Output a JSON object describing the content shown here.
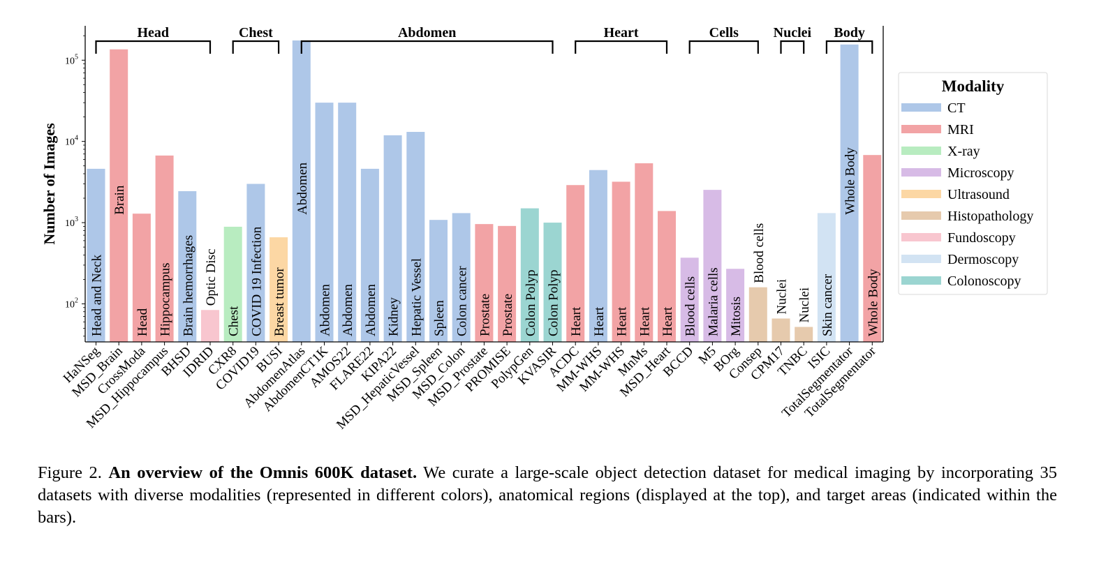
{
  "chart_data": {
    "type": "bar",
    "yscale": "log",
    "ylabel": "Number of Images",
    "xlabel": "",
    "ylim": [
      34,
      265000
    ],
    "yticks": [
      {
        "value": 100,
        "base": "10",
        "exp": "2"
      },
      {
        "value": 1000,
        "base": "10",
        "exp": "3"
      },
      {
        "value": 10000,
        "base": "10",
        "exp": "4"
      },
      {
        "value": 100000,
        "base": "10",
        "exp": "5"
      }
    ],
    "grid": false,
    "legend": {
      "title": "Modality",
      "placement": "right",
      "entries": [
        {
          "name": "CT",
          "color": "#aec7e8"
        },
        {
          "name": "MRI",
          "color": "#f2a3a5"
        },
        {
          "name": "X-ray",
          "color": "#b8ecc0"
        },
        {
          "name": "Microscopy",
          "color": "#d7bbe6"
        },
        {
          "name": "Ultrasound",
          "color": "#fcd7a4"
        },
        {
          "name": "Histopathology",
          "color": "#e6caad"
        },
        {
          "name": "Fundoscopy",
          "color": "#f8c6cf"
        },
        {
          "name": "Dermoscopy",
          "color": "#d2e3f3"
        },
        {
          "name": "Colonoscopy",
          "color": "#9bd5d1"
        }
      ]
    },
    "regions": [
      {
        "name": "Head",
        "from": 0,
        "to": 5
      },
      {
        "name": "Chest",
        "from": 6,
        "to": 8
      },
      {
        "name": "Abdomen",
        "from": 9,
        "to": 20
      },
      {
        "name": "Heart",
        "from": 21,
        "to": 25
      },
      {
        "name": "Cells",
        "from": 26,
        "to": 29
      },
      {
        "name": "Nuclei",
        "from": 30,
        "to": 31
      },
      {
        "name": "Body",
        "from": 32,
        "to": 34
      }
    ],
    "bars": [
      {
        "dataset": "HaNSeg",
        "modality": "CT",
        "target": "Head and Neck",
        "value": 4600
      },
      {
        "dataset": "MSD_Brain",
        "modality": "MRI",
        "target": "Brain",
        "value": 136000
      },
      {
        "dataset": "CrossModa",
        "modality": "MRI",
        "target": "Head",
        "value": 1290
      },
      {
        "dataset": "MSD_Hippocampus",
        "modality": "MRI",
        "target": "Hippocampus",
        "value": 6700
      },
      {
        "dataset": "BHSD",
        "modality": "CT",
        "target": "Brain hemorrhages",
        "value": 2440
      },
      {
        "dataset": "IDRID",
        "modality": "Fundoscopy",
        "target": "Optic Disc",
        "value": 84
      },
      {
        "dataset": "CXR8",
        "modality": "X-ray",
        "target": "Chest",
        "value": 890
      },
      {
        "dataset": "COVID19",
        "modality": "CT",
        "target": "COVID 19 Infection",
        "value": 3000
      },
      {
        "dataset": "BUSI",
        "modality": "Ultrasound",
        "target": "Breast tumor",
        "value": 660
      },
      {
        "dataset": "AbdomenAtlas",
        "modality": "CT",
        "target": "Abdomen",
        "value": 175000
      },
      {
        "dataset": "AbdomenCT1K",
        "modality": "CT",
        "target": "Abdomen",
        "value": 30000
      },
      {
        "dataset": "AMOS22",
        "modality": "CT",
        "target": "Abdomen",
        "value": 30000
      },
      {
        "dataset": "FLARE22",
        "modality": "CT",
        "target": "Abdomen",
        "value": 4600
      },
      {
        "dataset": "KIPA22",
        "modality": "CT",
        "target": "Kidney",
        "value": 11900
      },
      {
        "dataset": "MSD_HepaticVessel",
        "modality": "CT",
        "target": "Hepatic Vessel",
        "value": 13100
      },
      {
        "dataset": "MSD_Spleen",
        "modality": "CT",
        "target": "Spleen",
        "value": 1080
      },
      {
        "dataset": "MSD_Colon",
        "modality": "CT",
        "target": "Colon cancer",
        "value": 1310
      },
      {
        "dataset": "MSD_Prostate",
        "modality": "MRI",
        "target": "Prostate",
        "value": 960
      },
      {
        "dataset": "PROMISE",
        "modality": "MRI",
        "target": "Prostate",
        "value": 910
      },
      {
        "dataset": "PolypGen",
        "modality": "Colonoscopy",
        "target": "Colon Polyp",
        "value": 1500
      },
      {
        "dataset": "KVASIR",
        "modality": "Colonoscopy",
        "target": "Colon Polyp",
        "value": 1000
      },
      {
        "dataset": "ACDC",
        "modality": "MRI",
        "target": "Heart",
        "value": 2900
      },
      {
        "dataset": "MM-WHS",
        "modality": "CT",
        "target": "Heart",
        "value": 4440
      },
      {
        "dataset": "MM-WHS",
        "modality": "MRI",
        "target": "Heart",
        "value": 3190
      },
      {
        "dataset": "MnMs",
        "modality": "MRI",
        "target": "Heart",
        "value": 5380
      },
      {
        "dataset": "MSD_Heart",
        "modality": "MRI",
        "target": "Heart",
        "value": 1390
      },
      {
        "dataset": "BCCD",
        "modality": "Microscopy",
        "target": "Blood cells",
        "value": 370
      },
      {
        "dataset": "M5",
        "modality": "Microscopy",
        "target": "Malaria cells",
        "value": 2530
      },
      {
        "dataset": "BOrg",
        "modality": "Microscopy",
        "target": "Mitosis",
        "value": 270
      },
      {
        "dataset": "Consep",
        "modality": "Histopathology",
        "target": "Blood cells",
        "value": 160
      },
      {
        "dataset": "CPM17",
        "modality": "Histopathology",
        "target": "Nuclei",
        "value": 66
      },
      {
        "dataset": "TNBC",
        "modality": "Histopathology",
        "target": "Nuclei",
        "value": 52
      },
      {
        "dataset": "ISIC",
        "modality": "Dermoscopy",
        "target": "Skin cancer",
        "value": 1310
      },
      {
        "dataset": "TotalSegmentator",
        "modality": "CT",
        "target": "Whole Body",
        "value": 156000
      },
      {
        "dataset": "TotalSegmentator",
        "modality": "MRI",
        "target": "Whole Body",
        "value": 6800
      }
    ]
  },
  "caption": {
    "figure_label": "Figure 2.",
    "bold_title": "An overview of the Omnis 600K dataset.",
    "body": "We curate a large-scale object detection dataset for medical imaging by incorporating 35 datasets with diverse modalities (represented in different colors), anatomical regions (displayed at the top), and target areas (indicated within the bars)."
  }
}
